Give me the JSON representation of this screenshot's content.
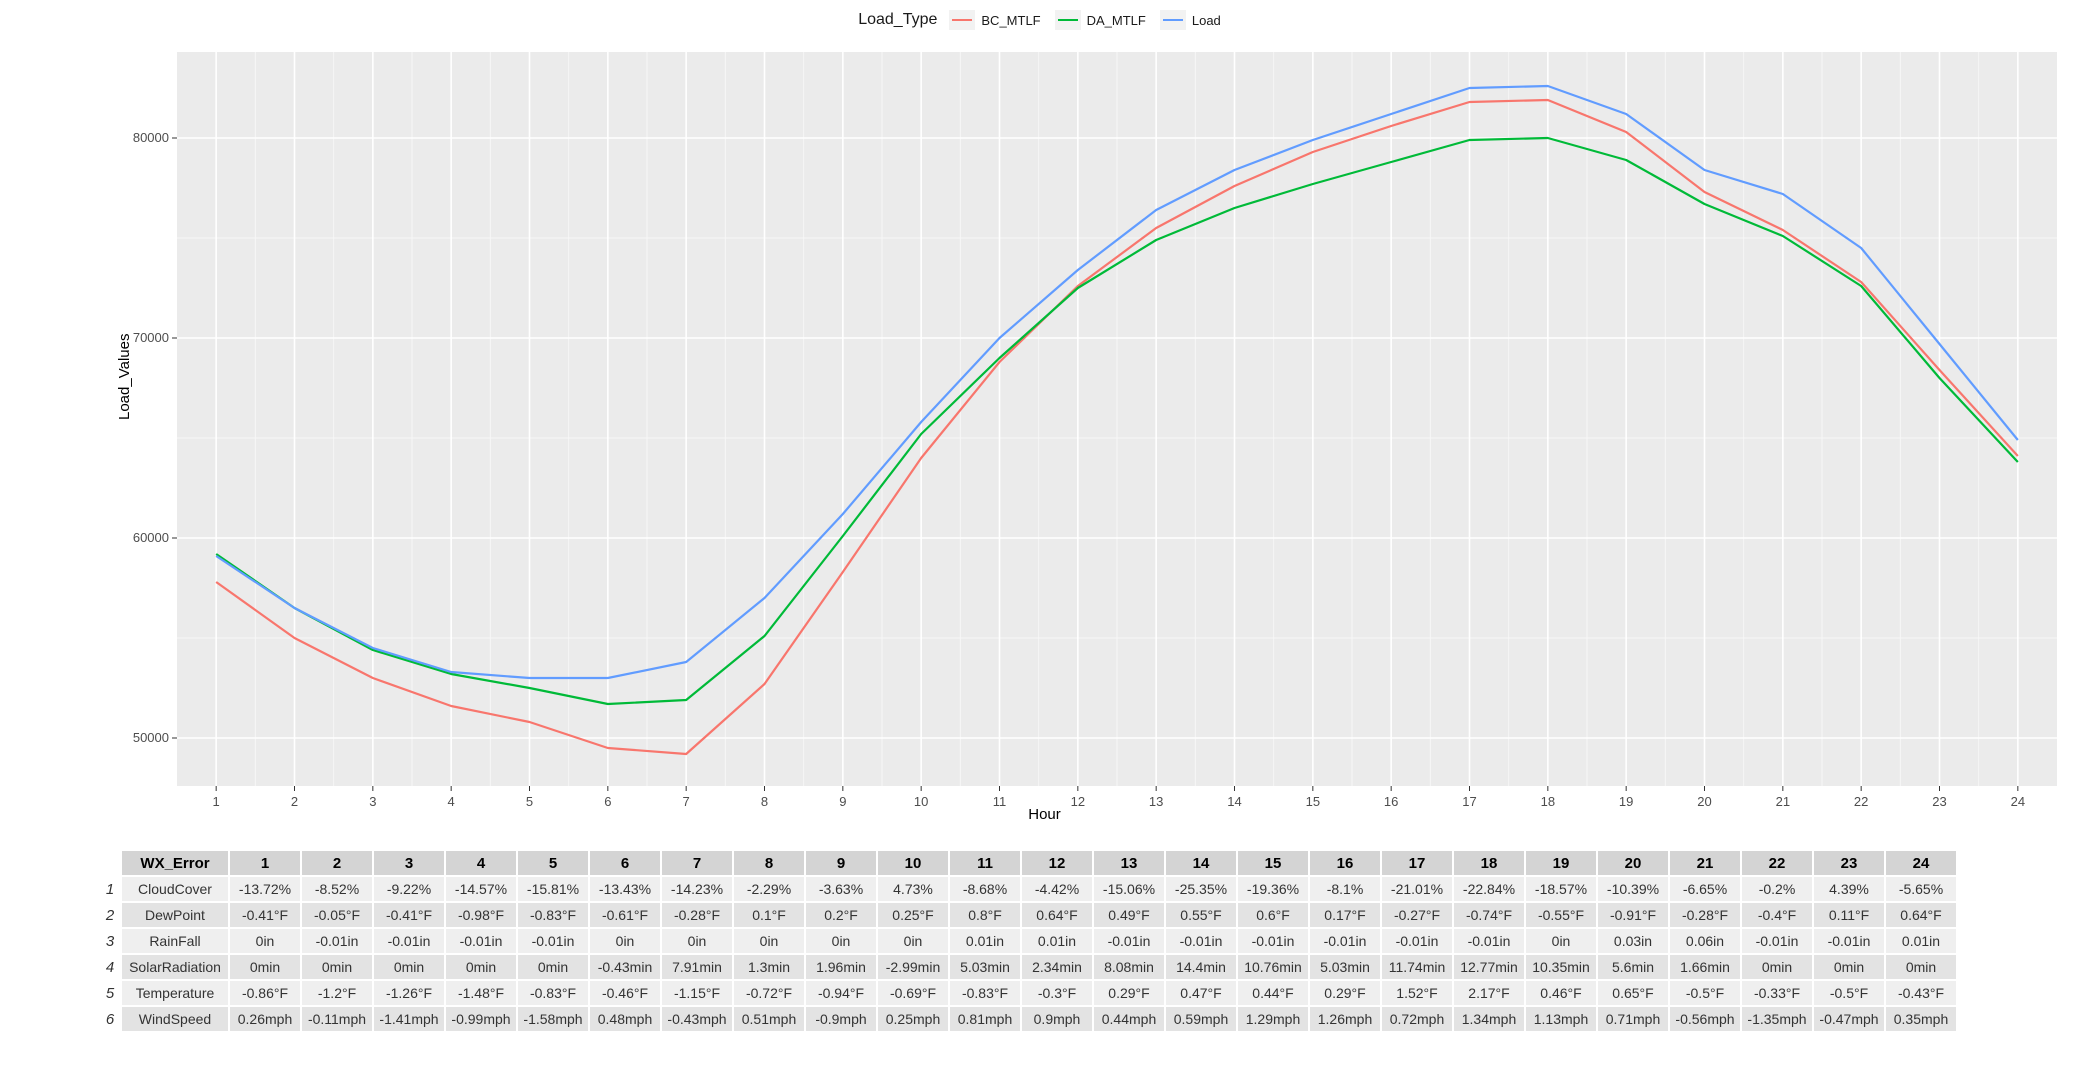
{
  "legend": {
    "title": "Load_Type",
    "items": [
      {
        "label": "BC_MTLF",
        "color": "#F8766D"
      },
      {
        "label": "DA_MTLF",
        "color": "#00BA38"
      },
      {
        "label": "Load",
        "color": "#619CFF"
      }
    ]
  },
  "chart_data": {
    "type": "line",
    "xlabel": "Hour",
    "ylabel": "Load_Values",
    "x": [
      1,
      2,
      3,
      4,
      5,
      6,
      7,
      8,
      9,
      10,
      11,
      12,
      13,
      14,
      15,
      16,
      17,
      18,
      19,
      20,
      21,
      22,
      23,
      24
    ],
    "xlim": [
      0.5,
      24.5
    ],
    "ylim": [
      47600,
      84300
    ],
    "yticks": [
      50000,
      60000,
      70000,
      80000
    ],
    "ytick_labels": [
      "50000",
      "60000",
      "70000",
      "80000"
    ],
    "grid": true,
    "legend_position": "top",
    "series": [
      {
        "name": "BC_MTLF",
        "color": "#F8766D",
        "values": [
          57800,
          55000,
          53000,
          51600,
          50800,
          49500,
          49200,
          52700,
          58300,
          64000,
          68800,
          72600,
          75500,
          77600,
          79300,
          80600,
          81800,
          81900,
          80300,
          77300,
          75400,
          72800,
          68400,
          64100
        ]
      },
      {
        "name": "DA_MTLF",
        "color": "#00BA38",
        "values": [
          59200,
          56500,
          54400,
          53200,
          52500,
          51700,
          51900,
          55100,
          60100,
          65200,
          69000,
          72500,
          74900,
          76500,
          77700,
          78800,
          79900,
          80000,
          78900,
          76700,
          75100,
          72600,
          68000,
          63800
        ]
      },
      {
        "name": "Load",
        "color": "#619CFF",
        "values": [
          59100,
          56500,
          54500,
          53300,
          53000,
          53000,
          53800,
          57000,
          61200,
          65800,
          70000,
          73400,
          76400,
          78400,
          79900,
          81200,
          82500,
          82600,
          81200,
          78400,
          77200,
          74500,
          69700,
          64900
        ]
      }
    ]
  },
  "table": {
    "header_label": "WX_Error",
    "columns": [
      "1",
      "2",
      "3",
      "4",
      "5",
      "6",
      "7",
      "8",
      "9",
      "10",
      "11",
      "12",
      "13",
      "14",
      "15",
      "16",
      "17",
      "18",
      "19",
      "20",
      "21",
      "22",
      "23",
      "24"
    ],
    "rows": [
      {
        "index": "1",
        "name": "CloudCover",
        "values": [
          "-13.72%",
          "-8.52%",
          "-9.22%",
          "-14.57%",
          "-15.81%",
          "-13.43%",
          "-14.23%",
          "-2.29%",
          "-3.63%",
          "4.73%",
          "-8.68%",
          "-4.42%",
          "-15.06%",
          "-25.35%",
          "-19.36%",
          "-8.1%",
          "-21.01%",
          "-22.84%",
          "-18.57%",
          "-10.39%",
          "-6.65%",
          "-0.2%",
          "4.39%",
          "-5.65%"
        ]
      },
      {
        "index": "2",
        "name": "DewPoint",
        "values": [
          "-0.41°F",
          "-0.05°F",
          "-0.41°F",
          "-0.98°F",
          "-0.83°F",
          "-0.61°F",
          "-0.28°F",
          "0.1°F",
          "0.2°F",
          "0.25°F",
          "0.8°F",
          "0.64°F",
          "0.49°F",
          "0.55°F",
          "0.6°F",
          "0.17°F",
          "-0.27°F",
          "-0.74°F",
          "-0.55°F",
          "-0.91°F",
          "-0.28°F",
          "-0.4°F",
          "0.11°F",
          "0.64°F"
        ]
      },
      {
        "index": "3",
        "name": "RainFall",
        "values": [
          "0in",
          "-0.01in",
          "-0.01in",
          "-0.01in",
          "-0.01in",
          "0in",
          "0in",
          "0in",
          "0in",
          "0in",
          "0.01in",
          "0.01in",
          "-0.01in",
          "-0.01in",
          "-0.01in",
          "-0.01in",
          "-0.01in",
          "-0.01in",
          "0in",
          "0.03in",
          "0.06in",
          "-0.01in",
          "-0.01in",
          "0.01in"
        ]
      },
      {
        "index": "4",
        "name": "SolarRadiation",
        "values": [
          "0min",
          "0min",
          "0min",
          "0min",
          "0min",
          "-0.43min",
          "7.91min",
          "1.3min",
          "1.96min",
          "-2.99min",
          "5.03min",
          "2.34min",
          "8.08min",
          "14.4min",
          "10.76min",
          "5.03min",
          "11.74min",
          "12.77min",
          "10.35min",
          "5.6min",
          "1.66min",
          "0min",
          "0min",
          "0min"
        ]
      },
      {
        "index": "5",
        "name": "Temperature",
        "values": [
          "-0.86°F",
          "-1.2°F",
          "-1.26°F",
          "-1.48°F",
          "-0.83°F",
          "-0.46°F",
          "-1.15°F",
          "-0.72°F",
          "-0.94°F",
          "-0.69°F",
          "-0.83°F",
          "-0.3°F",
          "0.29°F",
          "0.47°F",
          "0.44°F",
          "0.29°F",
          "1.52°F",
          "2.17°F",
          "0.46°F",
          "0.65°F",
          "-0.5°F",
          "-0.33°F",
          "-0.5°F",
          "-0.43°F"
        ]
      },
      {
        "index": "6",
        "name": "WindSpeed",
        "values": [
          "0.26mph",
          "-0.11mph",
          "-1.41mph",
          "-0.99mph",
          "-1.58mph",
          "0.48mph",
          "-0.43mph",
          "0.51mph",
          "-0.9mph",
          "0.25mph",
          "0.81mph",
          "0.9mph",
          "0.44mph",
          "0.59mph",
          "1.29mph",
          "1.26mph",
          "0.72mph",
          "1.34mph",
          "1.13mph",
          "0.71mph",
          "-0.56mph",
          "-1.35mph",
          "-0.47mph",
          "0.35mph"
        ]
      }
    ]
  }
}
